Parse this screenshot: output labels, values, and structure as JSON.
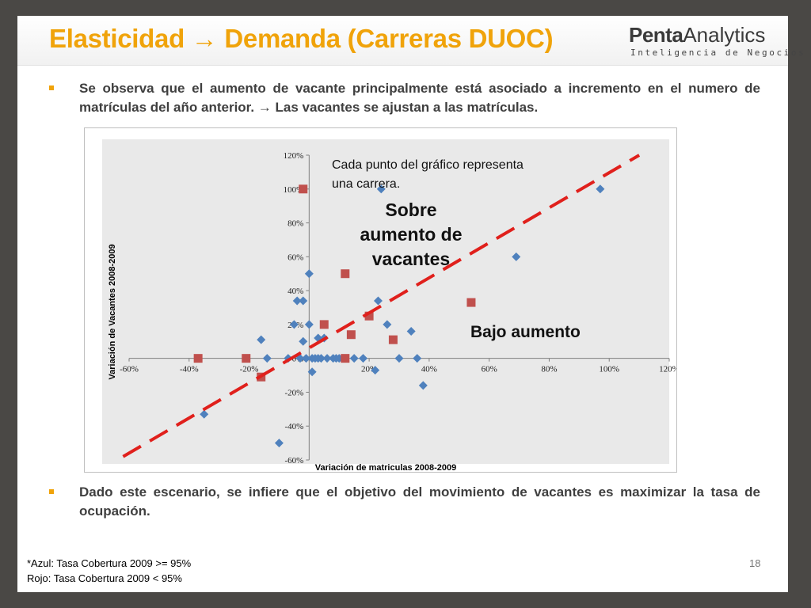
{
  "slide": {
    "title": "Elasticidad → Demanda (Carreras DUOC)",
    "logo": {
      "main_bold": "Penta",
      "main_regular": "Analytics",
      "sub": "Inteligencia de Negocios"
    },
    "bullets": [
      "Se observa que el aumento de vacante principalmente está asociado a incremento en el numero de matrículas del año anterior. → Las vacantes se ajustan a las matrículas.",
      "Dado este escenario, se infiere que el objetivo del movimiento de vacantes es maximizar la tasa de ocupación."
    ],
    "footnote_lines": [
      "*Azul: Tasa Cobertura 2009 >= 95%",
      "Rojo: Tasa Cobertura 2009 < 95%"
    ],
    "page_number": "18",
    "colors": {
      "title": "#f0a30a",
      "bullet_marker": "#f0a30a",
      "text": "#3f3f3f",
      "frame": "#4a4845"
    }
  },
  "chart_data": {
    "type": "scatter",
    "xlabel": "Variación de matriculas 2008-2009",
    "ylabel": "Variación de Vacantes 2008-2009",
    "xlim": [
      -0.6,
      1.2
    ],
    "ylim": [
      -0.6,
      1.2
    ],
    "x_ticks": [
      -0.6,
      -0.4,
      -0.2,
      0,
      0.2,
      0.4,
      0.6,
      0.8,
      1.0,
      1.2
    ],
    "x_tick_labels": [
      "-60%",
      "-40%",
      "-20%",
      "0%",
      "20%",
      "40%",
      "60%",
      "80%",
      "100%",
      "120%"
    ],
    "y_ticks": [
      1.2,
      1.0,
      0.8,
      0.6,
      0.4,
      0.2,
      0,
      -0.2,
      -0.4,
      -0.6
    ],
    "y_tick_labels": [
      "120%",
      "100%",
      "80%",
      "60%",
      "40%",
      "20%",
      "0%",
      "-20%",
      "-40%",
      "-60%"
    ],
    "grid": false,
    "series": [
      {
        "marker": "diamond",
        "color": "#4f81bd",
        "points": [
          [
            -0.35,
            -0.33
          ],
          [
            -0.16,
            0.11
          ],
          [
            -0.14,
            0.0
          ],
          [
            -0.1,
            -0.5
          ],
          [
            -0.07,
            0.0
          ],
          [
            -0.05,
            0.2
          ],
          [
            -0.04,
            0.34
          ],
          [
            -0.03,
            0.0
          ],
          [
            -0.02,
            0.34
          ],
          [
            -0.02,
            0.1
          ],
          [
            -0.01,
            0.0
          ],
          [
            0.0,
            0.5
          ],
          [
            0.0,
            0.2
          ],
          [
            0.01,
            0.0
          ],
          [
            0.01,
            -0.08
          ],
          [
            0.02,
            0.0
          ],
          [
            0.03,
            0.12
          ],
          [
            0.03,
            0.0
          ],
          [
            0.04,
            0.0
          ],
          [
            0.05,
            0.12
          ],
          [
            0.06,
            0.0
          ],
          [
            0.08,
            0.0
          ],
          [
            0.09,
            0.0
          ],
          [
            0.1,
            0.0
          ],
          [
            0.11,
            0.0
          ],
          [
            0.15,
            0.0
          ],
          [
            0.18,
            0.0
          ],
          [
            0.22,
            -0.07
          ],
          [
            0.23,
            0.34
          ],
          [
            0.24,
            1.0
          ],
          [
            0.26,
            0.2
          ],
          [
            0.3,
            0.0
          ],
          [
            0.34,
            0.16
          ],
          [
            0.36,
            0.0
          ],
          [
            0.38,
            -0.16
          ],
          [
            0.69,
            0.6
          ],
          [
            0.97,
            1.0
          ]
        ]
      },
      {
        "marker": "square",
        "color": "#c0504d",
        "points": [
          [
            -0.37,
            0.0
          ],
          [
            -0.21,
            0.0
          ],
          [
            -0.16,
            -0.11
          ],
          [
            -0.02,
            1.0
          ],
          [
            0.05,
            0.2
          ],
          [
            0.12,
            0.0
          ],
          [
            0.12,
            0.5
          ],
          [
            0.14,
            0.14
          ],
          [
            0.2,
            0.25
          ],
          [
            0.28,
            0.11
          ],
          [
            0.54,
            0.33
          ]
        ]
      }
    ],
    "reference_line": {
      "style": "dashed",
      "color": "#e0201c",
      "from": [
        -0.62,
        -0.58
      ],
      "to": [
        1.1,
        1.2
      ]
    },
    "annotations": [
      {
        "id": "note",
        "text": "Cada punto del gráfico representa una carrera."
      },
      {
        "id": "above",
        "text": "Sobre aumento de vacantes"
      },
      {
        "id": "below",
        "text": "Bajo aumento"
      }
    ]
  }
}
